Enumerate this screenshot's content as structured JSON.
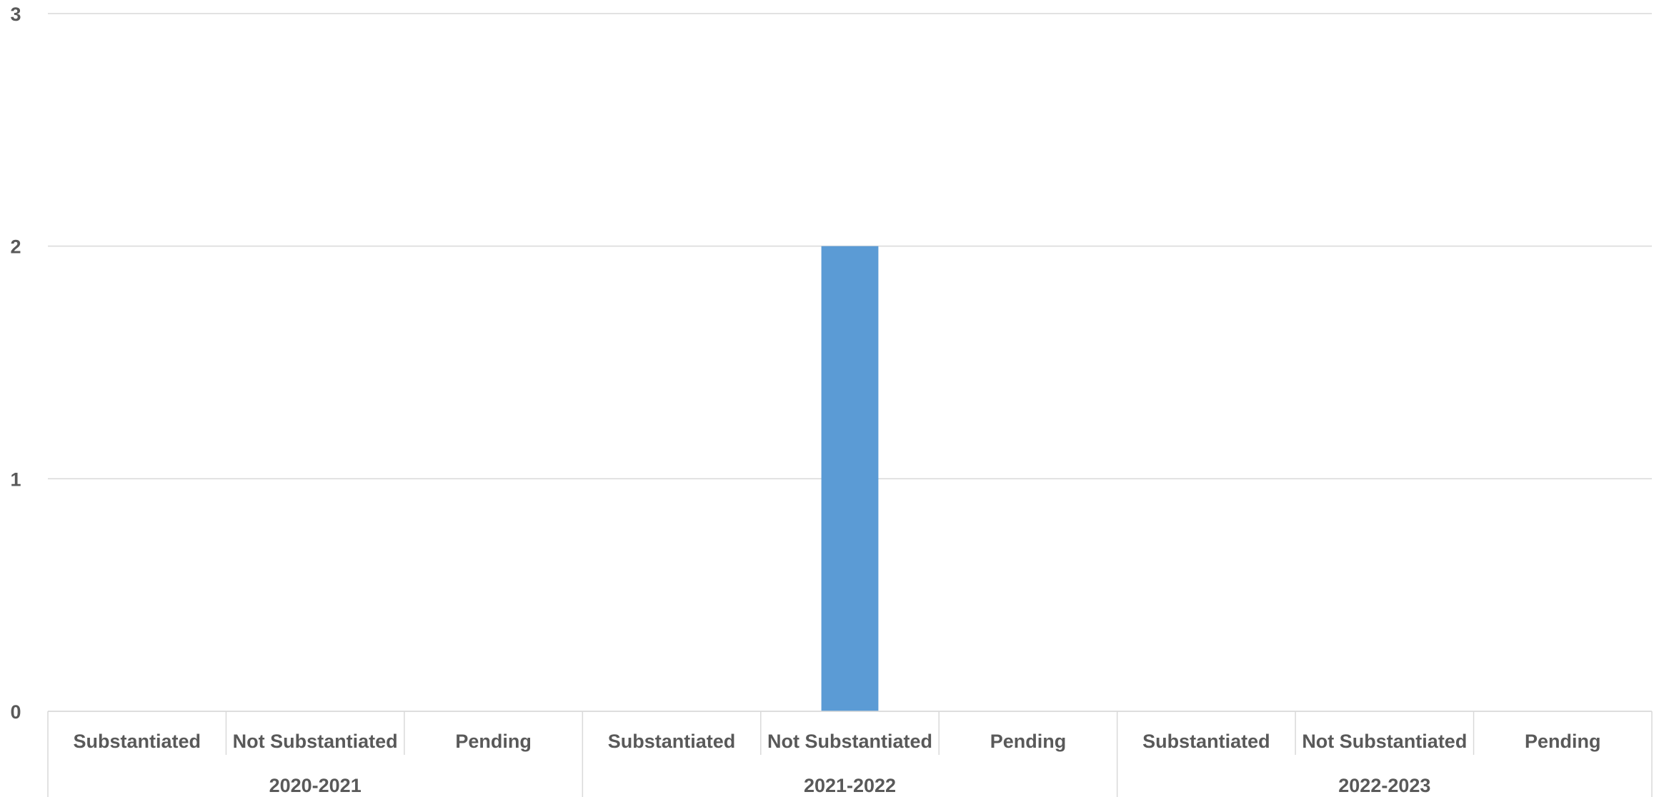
{
  "chart_data": {
    "type": "bar",
    "title": "",
    "xlabel": "",
    "ylabel": "",
    "ylim": [
      0,
      3
    ],
    "yticks": [
      0,
      1,
      2,
      3
    ],
    "grid": true,
    "legend": "none",
    "bar_color": "#5b9bd5",
    "groups": [
      {
        "label": "2020-2021",
        "categories": [
          "Substantiated",
          "Not Substantiated",
          "Pending"
        ],
        "values": [
          0,
          0,
          0
        ]
      },
      {
        "label": "2021-2022",
        "categories": [
          "Substantiated",
          "Not Substantiated",
          "Pending"
        ],
        "values": [
          0,
          2,
          0
        ]
      },
      {
        "label": "2022-2023",
        "categories": [
          "Substantiated",
          "Not Substantiated",
          "Pending"
        ],
        "values": [
          0,
          0,
          0
        ]
      }
    ]
  }
}
